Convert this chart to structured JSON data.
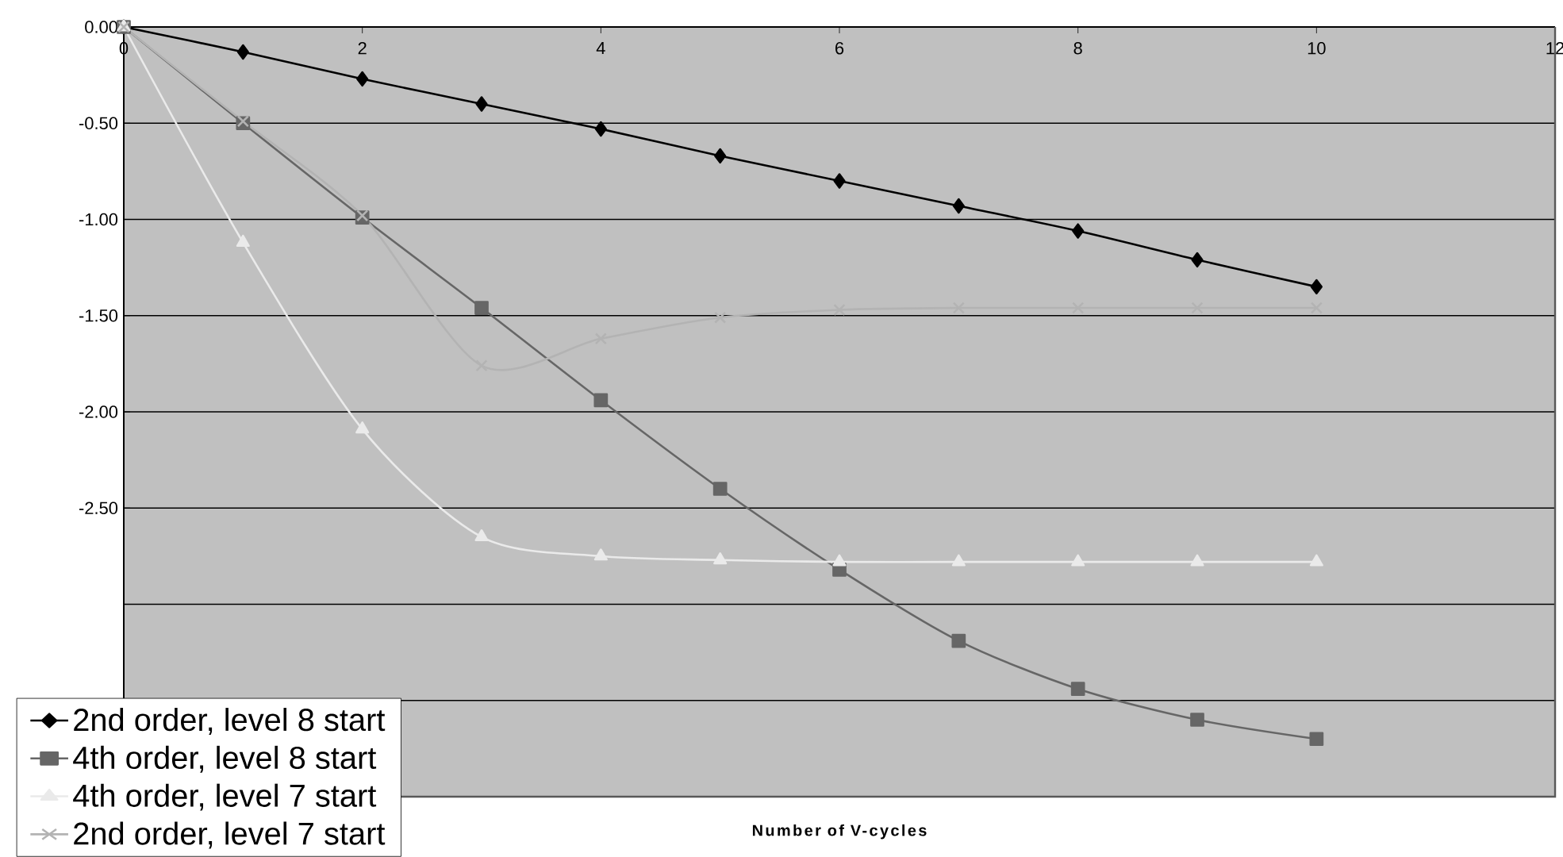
{
  "chart_data": {
    "type": "line",
    "xlabel": "Number of V-cycles",
    "x": [
      0,
      1,
      2,
      3,
      4,
      5,
      6,
      7,
      8,
      9,
      10
    ],
    "xlim": [
      0,
      12
    ],
    "xticks": [
      0,
      2,
      4,
      6,
      8,
      10,
      12
    ],
    "ylim": [
      -4,
      0
    ],
    "yticks": [
      {
        "value": 0,
        "label": "0.00"
      },
      {
        "value": -0.5,
        "label": "-0.50"
      },
      {
        "value": -1,
        "label": "-1.00"
      },
      {
        "value": -1.5,
        "label": "-1.50"
      },
      {
        "value": -2,
        "label": "-2.00"
      },
      {
        "value": -2.5,
        "label": "-2.50"
      },
      {
        "value": -3,
        "label": null
      },
      {
        "value": -3.5,
        "label": null
      },
      {
        "value": -4,
        "label": null
      }
    ],
    "grid": "y",
    "legend": "bottom left",
    "line_style": "solid",
    "series": [
      {
        "name": "2nd order, level 8 start",
        "color": "#000000",
        "marker": "diamond",
        "values": [
          0,
          -0.13,
          -0.27,
          -0.4,
          -0.53,
          -0.67,
          -0.8,
          -0.93,
          -1.06,
          -1.21,
          -1.35
        ]
      },
      {
        "name": "4th order, level 8 start",
        "color": "#666666",
        "marker": "square",
        "values": [
          0,
          -0.5,
          -0.99,
          -1.46,
          -1.94,
          -2.4,
          -2.82,
          -3.19,
          -3.44,
          -3.6,
          -3.7
        ]
      },
      {
        "name": "4th order, level 7 start",
        "color": "#eaeaea",
        "marker": "triangle",
        "values": [
          0,
          -1.12,
          -2.09,
          -2.65,
          -2.75,
          -2.77,
          -2.78,
          -2.78,
          -2.78,
          -2.78,
          -2.78
        ]
      },
      {
        "name": "2nd order, level 7 start",
        "color": "#b3b3b3",
        "marker": "cross",
        "values": [
          0,
          -0.49,
          -0.98,
          -1.76,
          -1.62,
          -1.51,
          -1.47,
          -1.46,
          -1.46,
          -1.46,
          -1.46
        ]
      }
    ]
  }
}
